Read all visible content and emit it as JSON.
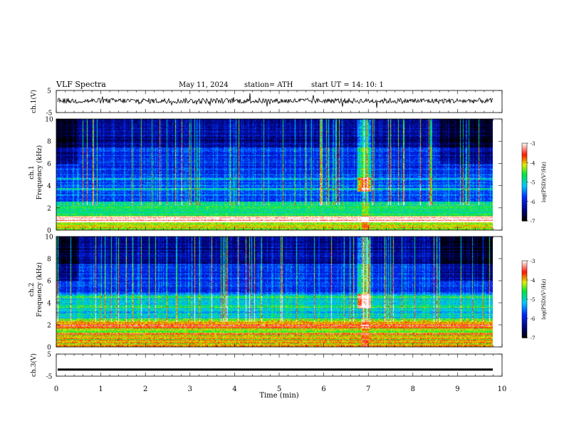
{
  "header": {
    "title": "VLF  Spectra",
    "date": "May 11, 2024",
    "station": "station= ATH",
    "start_ut": "start  UT  =     14: 10: 1"
  },
  "chart_data": [
    {
      "type": "line",
      "ylabel": "ch.1(V)",
      "ylim": [
        -5,
        5
      ],
      "yticks": [
        "5",
        "-5"
      ],
      "xlim": [
        0,
        10
      ],
      "description_values": {
        "baseline": 0.3,
        "amplitude": 1.2
      }
    },
    {
      "type": "heatmap",
      "ylabel_top": "ch.1",
      "ylabel": "Frequency (kHz)",
      "ylim": [
        0,
        10
      ],
      "yticks": [
        "0",
        "2",
        "4",
        "6",
        "8",
        "10"
      ],
      "xlim": [
        0,
        10
      ],
      "data_end_min": 9.8,
      "colorbar": {
        "label": "log(PSD)(V²/Hz)",
        "range": [
          -7,
          -3
        ],
        "ticks": [
          "-3",
          "-4",
          "-5",
          "-6",
          "-7"
        ]
      }
    },
    {
      "type": "heatmap",
      "ylabel_top": "ch.2",
      "ylabel": "Frequency (kHz)",
      "ylim": [
        0,
        10
      ],
      "yticks": [
        "0",
        "2",
        "4",
        "6",
        "8",
        "10"
      ],
      "xlim": [
        0,
        10
      ],
      "data_end_min": 9.8,
      "colorbar": {
        "label": "log(PSD)(V²/Hz)",
        "range": [
          -7,
          -3
        ],
        "ticks": [
          "-3",
          "-4",
          "-5",
          "-6",
          "-7"
        ]
      }
    },
    {
      "type": "line",
      "ylabel": "ch.3(V)",
      "ylim": [
        -5,
        5
      ],
      "yticks": [
        "5",
        "-5"
      ],
      "xlim": [
        0,
        10
      ],
      "description_values": {
        "baseline": -2.0
      }
    }
  ],
  "xaxis": {
    "label": "Time  (min)",
    "ticks": [
      "0",
      "1",
      "2",
      "3",
      "4",
      "5",
      "6",
      "7",
      "8",
      "9",
      "10"
    ]
  }
}
